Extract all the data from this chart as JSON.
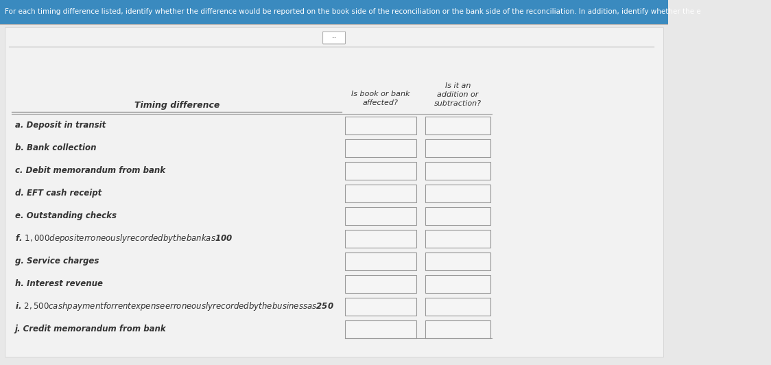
{
  "header_text": "For each timing difference listed, identify whether the difference would be reported on the book side of the reconciliation or the bank side of the reconciliation. In addition, identify whether the e",
  "col1_header": "Timing difference",
  "col2_header_line1": "Is book or bank",
  "col2_header_line2": "affected?",
  "col3_header_line1": "Is it an",
  "col3_header_line2": "addition or",
  "col3_header_line3": "subtraction?",
  "rows": [
    "a. Deposit in transit",
    "b. Bank collection",
    "c. Debit memorandum from bank",
    "d. EFT cash receipt",
    "e. Outstanding checks",
    "f. $1,000 deposit erroneously recorded by the bank as $100",
    "g. Service charges",
    "h. Interest revenue",
    "i. $2,500 cash payment for rent expense erroneously recorded by the business as $250",
    "j. Credit memorandum from bank"
  ],
  "page_bg": "#e8e8e8",
  "content_bg": "#f0f0f0",
  "top_bar_color": "#3a8abf",
  "header_text_color": "#333333",
  "row_text_color": "#333333",
  "cell_fill": "#f5f5f5",
  "cell_border": "#999999",
  "separator_line": "#aaaaaa",
  "header_line_color": "#888888"
}
